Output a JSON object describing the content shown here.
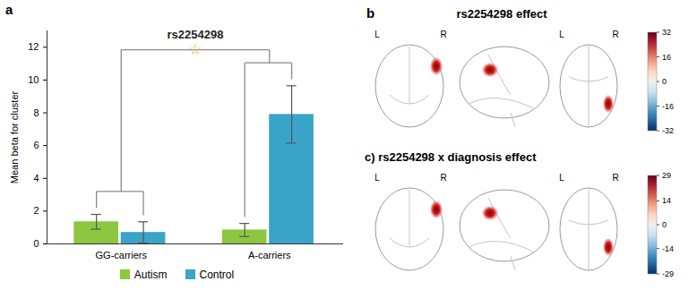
{
  "chart_data": [
    {
      "type": "bar",
      "panel": "a",
      "title": "rs2254298",
      "annotations": [
        "☆"
      ],
      "categories": [
        "GG-carriers",
        "A-carriers"
      ],
      "series": [
        {
          "name": "Autism",
          "color": "#8dc63f",
          "values": [
            1.35,
            0.85
          ],
          "errors": [
            0.45,
            0.4
          ]
        },
        {
          "name": "Control",
          "color": "#3aa3c8",
          "values": [
            0.7,
            7.9
          ],
          "errors": [
            0.65,
            1.75
          ]
        }
      ],
      "y_label": "Mean beta for cluster",
      "ylim": [
        0,
        13
      ],
      "yticks": [
        0,
        2,
        4,
        6,
        8,
        10,
        12
      ],
      "legend": "bottom"
    },
    {
      "type": "glass_brain",
      "panel": "b",
      "title": "rs2254298 effect",
      "view_labels": [
        "L",
        "R"
      ],
      "colorbar": {
        "range": [
          -32,
          32
        ],
        "ticks": [
          32,
          16,
          0,
          -16,
          -32
        ]
      }
    },
    {
      "type": "glass_brain",
      "title": "c) rs2254298 x diagnosis effect",
      "view_labels": [
        "L",
        "R"
      ],
      "colorbar": {
        "range": [
          -29,
          29
        ],
        "ticks": [
          29,
          14,
          0,
          -14,
          -29
        ]
      }
    }
  ]
}
